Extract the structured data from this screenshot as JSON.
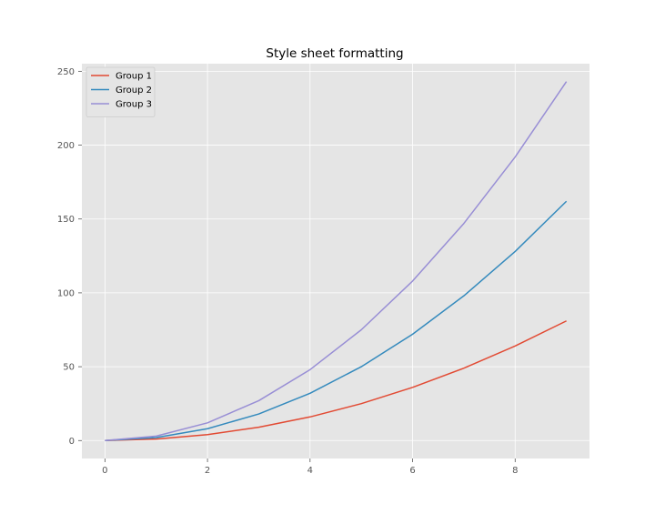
{
  "chart_data": {
    "type": "line",
    "title": "Style sheet formatting",
    "xlabel": "",
    "ylabel": "",
    "x": [
      0,
      1,
      2,
      3,
      4,
      5,
      6,
      7,
      8,
      9
    ],
    "xlim": [
      -0.45,
      9.45
    ],
    "ylim": [
      -12.15,
      255.15
    ],
    "xticks": [
      0,
      2,
      4,
      6,
      8
    ],
    "yticks": [
      0,
      50,
      100,
      150,
      200,
      250
    ],
    "grid": true,
    "legend_position": "upper left",
    "style": "ggplot",
    "series": [
      {
        "name": "Group 1",
        "color": "#E24A33",
        "values": [
          0,
          1,
          4,
          9,
          16,
          25,
          36,
          49,
          64,
          81
        ]
      },
      {
        "name": "Group 2",
        "color": "#348ABD",
        "values": [
          0,
          2,
          8,
          18,
          32,
          50,
          72,
          98,
          128,
          162
        ]
      },
      {
        "name": "Group 3",
        "color": "#988ED5",
        "values": [
          0,
          3,
          12,
          27,
          48,
          75,
          108,
          147,
          192,
          243
        ]
      }
    ]
  },
  "colors": {
    "plot_background": "#E5E5E5",
    "grid": "#FFFFFF",
    "tick": "#555555"
  }
}
